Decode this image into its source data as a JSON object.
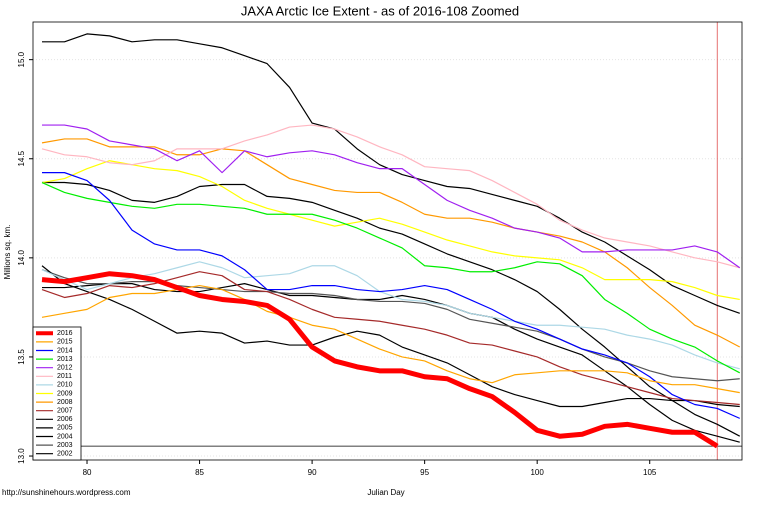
{
  "chart_data": {
    "type": "line",
    "title": "JAXA Arctic Ice Extent - as of 2016-108 Zoomed",
    "x_label": "Julian Day",
    "y_label": "Millions sq. km.",
    "source": "http://sunshinehours.wordpress.com",
    "grid": true,
    "legend": "bottom-left",
    "xlim": [
      77.6,
      109.1
    ],
    "ylim": [
      12.98,
      15.19
    ],
    "xticks": [
      80,
      85,
      90,
      95,
      100,
      105
    ],
    "yticks": [
      {
        "value": 13,
        "label": "13.0"
      },
      13.5,
      {
        "value": 14,
        "label": "14.0"
      },
      14.5,
      {
        "value": 15,
        "label": "15.0"
      }
    ],
    "vline": 108,
    "hline": 13.05,
    "x": [
      78,
      79,
      80,
      81,
      82,
      83,
      84,
      85,
      86,
      87,
      88,
      89,
      90,
      91,
      92,
      93,
      94,
      95,
      96,
      97,
      98,
      99,
      100,
      101,
      102,
      103,
      104,
      105,
      106,
      107,
      108,
      109
    ],
    "series": [
      {
        "name": "2016",
        "color": "#ff0000",
        "width": 5,
        "values": [
          13.89,
          13.88,
          13.9,
          13.92,
          13.91,
          13.89,
          13.85,
          13.81,
          13.79,
          13.78,
          13.76,
          13.69,
          13.55,
          13.48,
          13.45,
          13.43,
          13.43,
          13.4,
          13.39,
          13.34,
          13.3,
          13.22,
          13.13,
          13.1,
          13.11,
          13.15,
          13.16,
          13.14,
          13.12,
          13.12,
          13.05,
          null
        ]
      },
      {
        "name": "2015",
        "color": "#ffa500",
        "width": 1.2,
        "values": [
          13.7,
          13.72,
          13.74,
          13.8,
          13.82,
          13.82,
          13.84,
          13.86,
          13.84,
          13.79,
          13.73,
          13.7,
          13.66,
          13.64,
          13.59,
          13.54,
          13.5,
          13.48,
          13.43,
          13.39,
          13.37,
          13.41,
          13.42,
          13.43,
          13.43,
          13.43,
          13.42,
          13.38,
          13.36,
          13.36,
          13.34,
          13.32
        ]
      },
      {
        "name": "2014",
        "color": "#0000ff",
        "width": 1.2,
        "values": [
          14.43,
          14.43,
          14.39,
          14.29,
          14.14,
          14.07,
          14.04,
          14.04,
          14.01,
          13.94,
          13.84,
          13.84,
          13.86,
          13.86,
          13.84,
          13.83,
          13.84,
          13.86,
          13.84,
          13.79,
          13.74,
          13.68,
          13.64,
          13.59,
          13.54,
          13.51,
          13.47,
          13.4,
          13.31,
          13.26,
          13.24,
          13.19
        ]
      },
      {
        "name": "2013",
        "color": "#00ee00",
        "width": 1.2,
        "values": [
          14.38,
          14.33,
          14.3,
          14.28,
          14.26,
          14.25,
          14.27,
          14.27,
          14.26,
          14.25,
          14.22,
          14.22,
          14.22,
          14.19,
          14.15,
          14.1,
          14.05,
          13.96,
          13.95,
          13.93,
          13.93,
          13.95,
          13.98,
          13.97,
          13.91,
          13.79,
          13.72,
          13.64,
          13.59,
          13.55,
          13.48,
          13.42
        ]
      },
      {
        "name": "2012",
        "color": "#a020f0",
        "width": 1.2,
        "values": [
          14.67,
          14.67,
          14.65,
          14.59,
          14.57,
          14.55,
          14.49,
          14.54,
          14.43,
          14.54,
          14.51,
          14.53,
          14.54,
          14.52,
          14.48,
          14.45,
          14.45,
          14.37,
          14.29,
          14.24,
          14.2,
          14.15,
          14.13,
          14.1,
          14.03,
          14.03,
          14.04,
          14.04,
          14.04,
          14.06,
          14.03,
          13.95
        ]
      },
      {
        "name": "2011",
        "color": "#ffb6c1",
        "width": 1.2,
        "values": [
          14.55,
          14.52,
          14.51,
          14.48,
          14.47,
          14.49,
          14.55,
          14.55,
          14.55,
          14.59,
          14.62,
          14.66,
          14.67,
          14.65,
          14.61,
          14.56,
          14.52,
          14.46,
          14.45,
          14.44,
          14.39,
          14.33,
          14.27,
          14.19,
          14.14,
          14.1,
          14.08,
          14.06,
          14.03,
          14.0,
          13.98,
          13.95
        ]
      },
      {
        "name": "2010",
        "color": "#add8e6",
        "width": 1.2,
        "values": [
          13.94,
          13.89,
          13.84,
          13.87,
          13.9,
          13.92,
          13.95,
          13.98,
          13.95,
          13.9,
          13.91,
          13.92,
          13.96,
          13.96,
          13.91,
          13.83,
          13.79,
          13.78,
          13.76,
          13.72,
          13.7,
          13.68,
          13.66,
          13.66,
          13.65,
          13.64,
          13.61,
          13.59,
          13.56,
          13.51,
          13.47,
          13.44
        ]
      },
      {
        "name": "2009",
        "color": "#ffff00",
        "width": 1.2,
        "values": [
          14.38,
          14.4,
          14.45,
          14.49,
          14.47,
          14.45,
          14.44,
          14.41,
          14.36,
          14.29,
          14.25,
          14.22,
          14.19,
          14.16,
          14.18,
          14.2,
          14.17,
          14.13,
          14.09,
          14.06,
          14.03,
          14.01,
          14.0,
          13.99,
          13.95,
          13.89,
          13.89,
          13.89,
          13.88,
          13.85,
          13.81,
          13.79
        ]
      },
      {
        "name": "2008",
        "color": "#ff9900",
        "width": 1.2,
        "values": [
          14.58,
          14.6,
          14.6,
          14.56,
          14.56,
          14.56,
          14.52,
          14.52,
          14.55,
          14.54,
          14.47,
          14.4,
          14.37,
          14.34,
          14.33,
          14.33,
          14.28,
          14.22,
          14.2,
          14.2,
          14.18,
          14.15,
          14.13,
          14.11,
          14.08,
          14.03,
          13.95,
          13.85,
          13.76,
          13.66,
          13.61,
          13.55
        ]
      },
      {
        "name": "2007",
        "color": "#a52a2a",
        "width": 1.2,
        "values": [
          13.84,
          13.8,
          13.82,
          13.86,
          13.85,
          13.87,
          13.9,
          13.93,
          13.91,
          13.84,
          13.83,
          13.79,
          13.74,
          13.7,
          13.69,
          13.68,
          13.66,
          13.64,
          13.61,
          13.57,
          13.56,
          13.53,
          13.5,
          13.45,
          13.41,
          13.38,
          13.35,
          13.32,
          13.29,
          13.28,
          13.27,
          13.26
        ]
      },
      {
        "name": "2006",
        "color": "#000000",
        "width": 1.2,
        "values": [
          15.09,
          15.09,
          15.13,
          15.12,
          15.09,
          15.1,
          15.1,
          15.08,
          15.06,
          15.02,
          14.98,
          14.86,
          14.68,
          14.65,
          14.55,
          14.47,
          14.42,
          14.39,
          14.36,
          14.35,
          14.32,
          14.29,
          14.26,
          14.2,
          14.13,
          14.08,
          14.01,
          13.94,
          13.86,
          13.81,
          13.76,
          13.72
        ]
      },
      {
        "name": "2005",
        "color": "#000000",
        "width": 1.2,
        "values": [
          14.38,
          14.38,
          14.37,
          14.34,
          14.29,
          14.28,
          14.31,
          14.36,
          14.37,
          14.37,
          14.31,
          14.3,
          14.28,
          14.24,
          14.2,
          14.15,
          14.12,
          14.07,
          14.02,
          13.98,
          13.94,
          13.89,
          13.83,
          13.74,
          13.64,
          13.55,
          13.45,
          13.35,
          13.28,
          13.21,
          13.16,
          13.1
        ]
      },
      {
        "name": "2004",
        "color": "#000000",
        "width": 1.2,
        "values": [
          13.96,
          13.87,
          13.83,
          13.79,
          13.74,
          13.68,
          13.62,
          13.63,
          13.62,
          13.57,
          13.58,
          13.56,
          13.56,
          13.6,
          13.63,
          13.61,
          13.55,
          13.51,
          13.47,
          13.41,
          13.35,
          13.31,
          13.28,
          13.25,
          13.25,
          13.27,
          13.29,
          13.29,
          13.28,
          13.28,
          13.26,
          13.25
        ]
      },
      {
        "name": "2003",
        "color": "#555555",
        "width": 1.2,
        "values": [
          13.94,
          13.9,
          13.87,
          13.87,
          13.88,
          13.88,
          13.86,
          13.85,
          13.84,
          13.83,
          13.83,
          13.82,
          13.82,
          13.81,
          13.79,
          13.78,
          13.78,
          13.77,
          13.74,
          13.69,
          13.67,
          13.65,
          13.63,
          13.59,
          13.54,
          13.5,
          13.47,
          13.43,
          13.4,
          13.39,
          13.38,
          13.39
        ]
      },
      {
        "name": "2002",
        "color": "#000000",
        "width": 1.2,
        "values": [
          13.85,
          13.85,
          13.86,
          13.87,
          13.87,
          13.84,
          13.83,
          13.83,
          13.85,
          13.87,
          13.84,
          13.81,
          13.81,
          13.8,
          13.79,
          13.79,
          13.81,
          13.79,
          13.76,
          13.72,
          13.7,
          13.64,
          13.59,
          13.55,
          13.51,
          13.43,
          13.35,
          13.26,
          13.18,
          13.13,
          13.1,
          13.07
        ]
      }
    ]
  }
}
